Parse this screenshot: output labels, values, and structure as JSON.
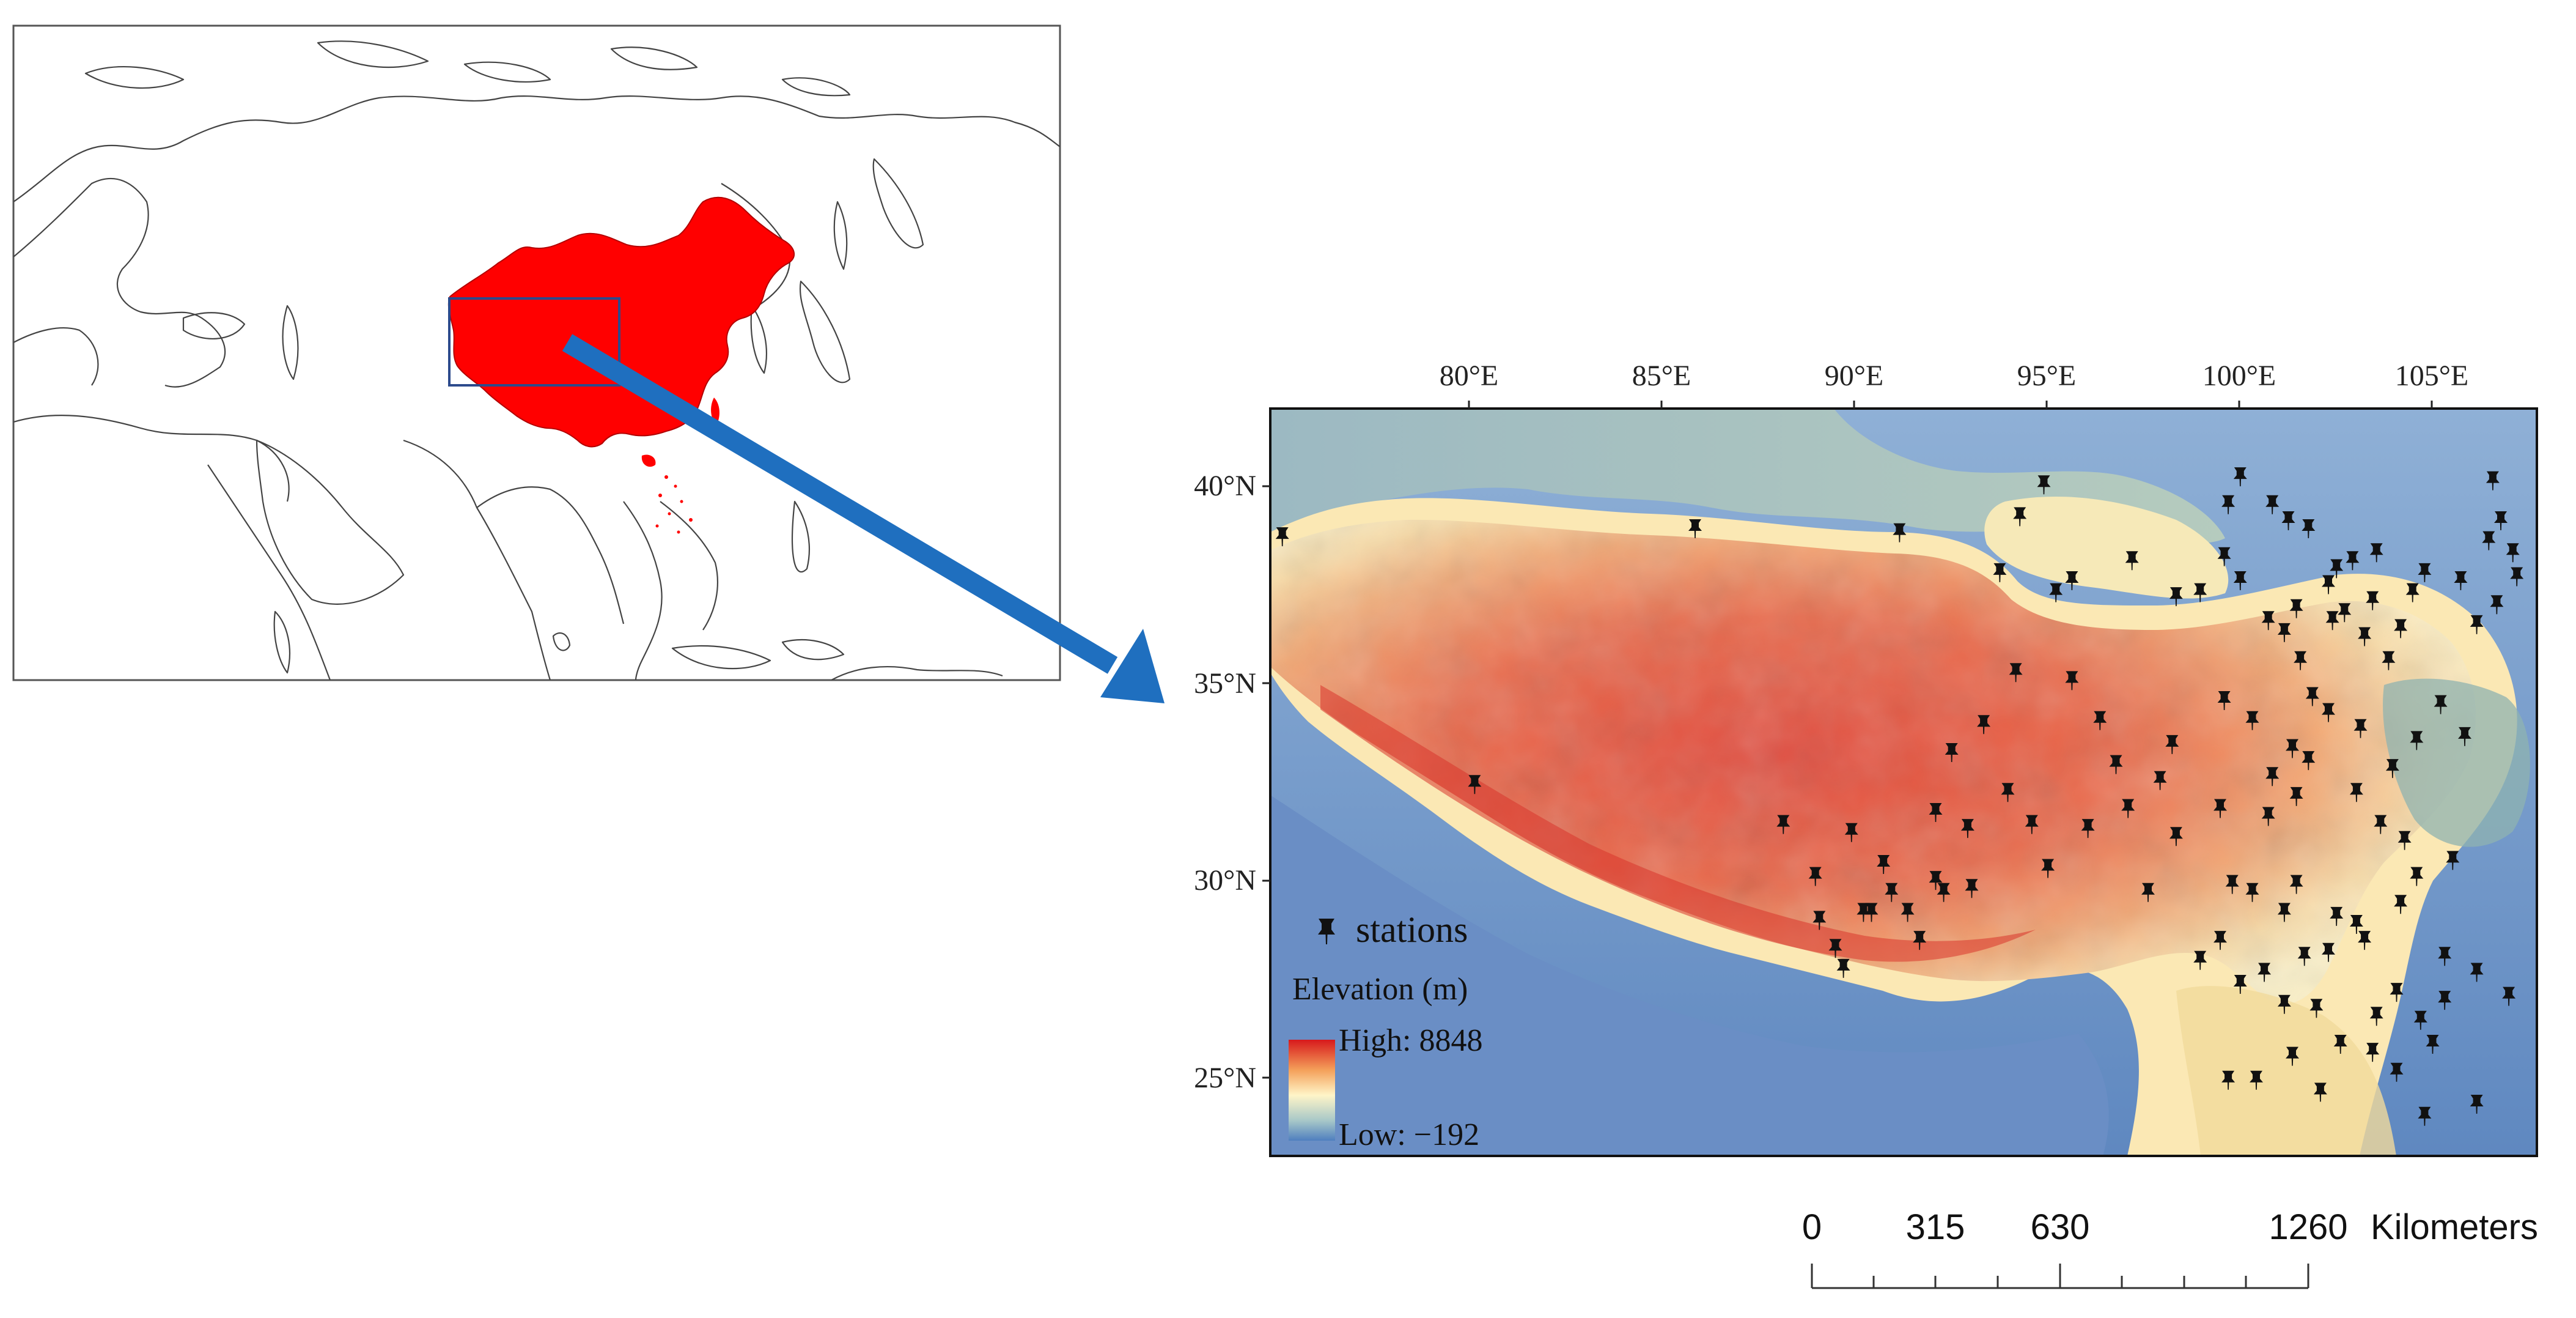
{
  "inset_map": {
    "study_area_color": "#ff0000",
    "box_color": "#2c4a8c",
    "arrow_color": "#1f6fbf"
  },
  "main_map": {
    "lon_labels": [
      "80°E",
      "85°E",
      "90°E",
      "95°E",
      "100°E",
      "105°E"
    ],
    "lat_labels": [
      "40°N",
      "35°N",
      "30°N",
      "25°N"
    ],
    "legend": {
      "stations_label": "stations",
      "elevation_title": "Elevation (m)",
      "high_label": "High: 8848",
      "low_label": "Low: −192",
      "ramp_colors": [
        "#d7191c",
        "#f4a05a",
        "#fff5c8",
        "#a8c8c8",
        "#4f7fbf"
      ]
    },
    "stations": [
      [
        75.3,
        38.7
      ],
      [
        85.6,
        38.9
      ],
      [
        90.7,
        38.8
      ],
      [
        93.7,
        39.2
      ],
      [
        94.3,
        40.0
      ],
      [
        95.0,
        37.6
      ],
      [
        93.2,
        37.8
      ],
      [
        94.6,
        37.3
      ],
      [
        96.5,
        38.1
      ],
      [
        97.6,
        37.2
      ],
      [
        98.2,
        37.3
      ],
      [
        98.9,
        39.5
      ],
      [
        99.2,
        40.2
      ],
      [
        98.8,
        38.2
      ],
      [
        99.2,
        37.6
      ],
      [
        100.0,
        39.5
      ],
      [
        100.4,
        39.1
      ],
      [
        100.9,
        38.9
      ],
      [
        102.0,
        38.1
      ],
      [
        102.6,
        38.3
      ],
      [
        102.5,
        37.1
      ],
      [
        101.4,
        37.5
      ],
      [
        101.6,
        37.9
      ],
      [
        100.6,
        36.9
      ],
      [
        99.9,
        36.6
      ],
      [
        100.3,
        36.3
      ],
      [
        101.5,
        36.6
      ],
      [
        102.3,
        36.2
      ],
      [
        103.2,
        36.4
      ],
      [
        103.8,
        37.8
      ],
      [
        103.5,
        37.3
      ],
      [
        104.7,
        37.6
      ],
      [
        105.1,
        36.5
      ],
      [
        105.6,
        37.0
      ],
      [
        105.4,
        38.6
      ],
      [
        105.7,
        39.1
      ],
      [
        105.5,
        40.1
      ],
      [
        106.0,
        38.3
      ],
      [
        106.1,
        37.7
      ],
      [
        101.8,
        36.8
      ],
      [
        100.7,
        35.6
      ],
      [
        101.0,
        34.7
      ],
      [
        102.9,
        35.6
      ],
      [
        104.2,
        34.5
      ],
      [
        104.8,
        33.7
      ],
      [
        103.0,
        32.9
      ],
      [
        103.6,
        33.6
      ],
      [
        102.2,
        33.9
      ],
      [
        100.9,
        33.1
      ],
      [
        100.6,
        32.2
      ],
      [
        99.9,
        31.7
      ],
      [
        98.7,
        31.9
      ],
      [
        97.6,
        31.2
      ],
      [
        96.4,
        31.9
      ],
      [
        95.4,
        31.4
      ],
      [
        94.0,
        31.5
      ],
      [
        93.4,
        32.3
      ],
      [
        92.4,
        31.4
      ],
      [
        91.6,
        31.8
      ],
      [
        92.0,
        33.3
      ],
      [
        92.8,
        34.0
      ],
      [
        93.6,
        35.3
      ],
      [
        95.0,
        35.1
      ],
      [
        95.7,
        34.1
      ],
      [
        96.1,
        33.0
      ],
      [
        97.5,
        33.5
      ],
      [
        97.2,
        32.6
      ],
      [
        98.8,
        34.6
      ],
      [
        99.5,
        34.1
      ],
      [
        100.0,
        32.7
      ],
      [
        100.5,
        33.4
      ],
      [
        101.4,
        34.3
      ],
      [
        102.1,
        32.3
      ],
      [
        102.7,
        31.5
      ],
      [
        103.3,
        31.1
      ],
      [
        103.6,
        30.2
      ],
      [
        104.5,
        30.6
      ],
      [
        103.2,
        29.5
      ],
      [
        102.3,
        28.6
      ],
      [
        101.6,
        29.2
      ],
      [
        100.6,
        30.0
      ],
      [
        100.3,
        29.3
      ],
      [
        99.5,
        29.8
      ],
      [
        98.7,
        28.6
      ],
      [
        98.2,
        28.1
      ],
      [
        99.2,
        27.5
      ],
      [
        99.8,
        27.8
      ],
      [
        100.3,
        27.0
      ],
      [
        101.1,
        26.9
      ],
      [
        101.7,
        26.0
      ],
      [
        102.6,
        26.7
      ],
      [
        103.1,
        27.3
      ],
      [
        103.7,
        26.6
      ],
      [
        104.3,
        27.1
      ],
      [
        105.1,
        27.8
      ],
      [
        104.0,
        26.0
      ],
      [
        103.1,
        25.3
      ],
      [
        102.5,
        25.8
      ],
      [
        101.2,
        24.8
      ],
      [
        100.5,
        25.7
      ],
      [
        99.6,
        25.1
      ],
      [
        98.9,
        25.1
      ],
      [
        103.8,
        24.2
      ],
      [
        105.1,
        24.5
      ],
      [
        104.3,
        28.2
      ],
      [
        105.9,
        27.2
      ],
      [
        100.8,
        28.2
      ],
      [
        101.4,
        28.3
      ],
      [
        102.1,
        29.0
      ],
      [
        99.0,
        30.0
      ],
      [
        96.9,
        29.8
      ],
      [
        94.4,
        30.4
      ],
      [
        92.5,
        29.9
      ],
      [
        91.6,
        30.1
      ],
      [
        90.3,
        30.5
      ],
      [
        91.2,
        28.6
      ],
      [
        89.1,
        28.4
      ],
      [
        89.3,
        27.9
      ],
      [
        89.8,
        29.3
      ],
      [
        90.5,
        29.8
      ],
      [
        88.7,
        29.1
      ],
      [
        90.0,
        29.3
      ],
      [
        90.9,
        29.3
      ],
      [
        91.8,
        29.8
      ],
      [
        88.6,
        30.2
      ],
      [
        89.5,
        31.3
      ],
      [
        87.8,
        31.5
      ],
      [
        80.1,
        32.5
      ]
    ],
    "colors": {
      "high": "#e4503a",
      "mid": "#f3b97a",
      "cream": "#fdf3c4",
      "teal": "#b7cfc6",
      "blue": "#6e93c4",
      "basin": "#9fb8b4"
    }
  },
  "scale_bar": {
    "ticks": [
      "0",
      "315",
      "630",
      "1260"
    ],
    "unit": "Kilometers"
  }
}
